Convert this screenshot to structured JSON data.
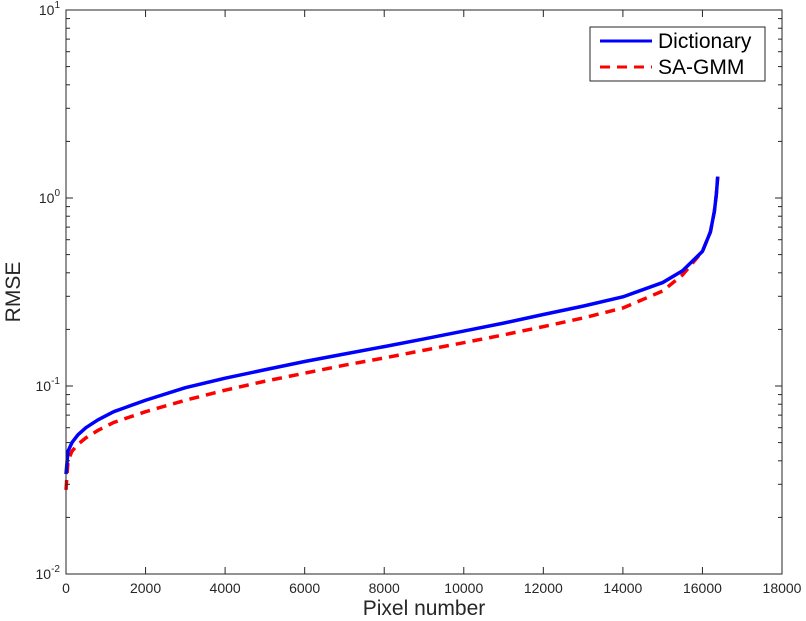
{
  "chart_data": {
    "type": "line",
    "xlabel": "Pixel number",
    "ylabel": "RMSE",
    "xlim": [
      0,
      18000
    ],
    "ylim": [
      0.01,
      10
    ],
    "yscale": "log",
    "grid": false,
    "legend_position": "top-right",
    "x_ticks": [
      {
        "value": 0,
        "label": "0"
      },
      {
        "value": 2000,
        "label": "2000"
      },
      {
        "value": 4000,
        "label": "4000"
      },
      {
        "value": 6000,
        "label": "6000"
      },
      {
        "value": 8000,
        "label": "8000"
      },
      {
        "value": 10000,
        "label": "10000"
      },
      {
        "value": 12000,
        "label": "12000"
      },
      {
        "value": 14000,
        "label": "14000"
      },
      {
        "value": 16000,
        "label": "16000"
      },
      {
        "value": 18000,
        "label": "18000"
      }
    ],
    "y_ticks": [
      {
        "value": 0.01,
        "base": "10",
        "exp": "-2"
      },
      {
        "value": 0.1,
        "base": "10",
        "exp": "-1"
      },
      {
        "value": 1,
        "base": "10",
        "exp": "0"
      },
      {
        "value": 10,
        "base": "10",
        "exp": "1"
      }
    ],
    "series": [
      {
        "name": "Dictionary",
        "color": "#0000ff",
        "style": "solid",
        "x": [
          0,
          50,
          150,
          300,
          500,
          800,
          1200,
          2000,
          3000,
          4000,
          5000,
          6000,
          7000,
          8000,
          9000,
          10000,
          11000,
          12000,
          13000,
          14000,
          15000,
          15500,
          16000,
          16200,
          16300,
          16350,
          16384
        ],
        "y": [
          0.034,
          0.045,
          0.05,
          0.055,
          0.06,
          0.066,
          0.073,
          0.084,
          0.098,
          0.11,
          0.122,
          0.135,
          0.148,
          0.162,
          0.178,
          0.196,
          0.216,
          0.24,
          0.266,
          0.298,
          0.355,
          0.41,
          0.52,
          0.66,
          0.85,
          1.05,
          1.3
        ]
      },
      {
        "name": "SA-GMM",
        "color": "#ff0000",
        "style": "dashed",
        "x": [
          0,
          50,
          150,
          300,
          500,
          800,
          1200,
          2000,
          3000,
          4000,
          5000,
          6000,
          7000,
          8000,
          9000,
          10000,
          11000,
          12000,
          13000,
          14000,
          15000,
          15500,
          16000,
          16200,
          16300,
          16350,
          16384
        ],
        "y": [
          0.028,
          0.04,
          0.045,
          0.049,
          0.053,
          0.058,
          0.064,
          0.073,
          0.084,
          0.095,
          0.106,
          0.117,
          0.129,
          0.141,
          0.155,
          0.17,
          0.187,
          0.207,
          0.23,
          0.26,
          0.32,
          0.39,
          0.52,
          0.66,
          0.85,
          1.05,
          1.3
        ]
      }
    ]
  }
}
